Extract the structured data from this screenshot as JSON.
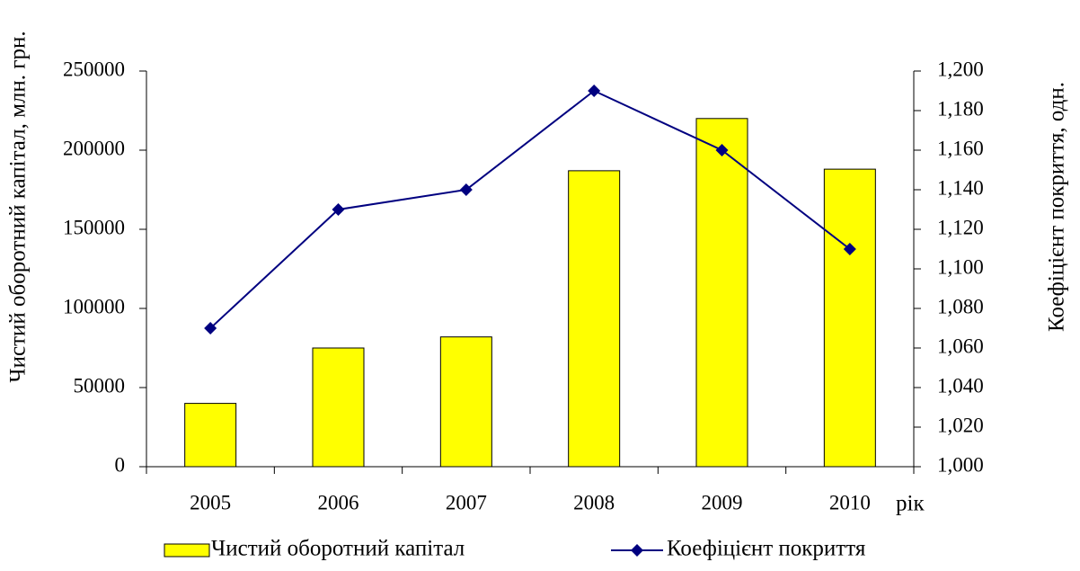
{
  "chart_data": {
    "type": "bar_line",
    "categories": [
      "2005",
      "2006",
      "2007",
      "2008",
      "2009",
      "2010"
    ],
    "x_label": "рік",
    "y_label": "Чистий оборотний капітал, млн. грн.",
    "y2_label": "Коефіцієнт покриття, одн.",
    "series": [
      {
        "name": "Чистий оборотний капітал",
        "type": "bar",
        "color": "#ffff00",
        "values": [
          40000,
          75000,
          82000,
          187000,
          220000,
          188000
        ]
      },
      {
        "name": "Коефіцієнт покриття",
        "type": "line",
        "axis": "y2",
        "color": "#000080",
        "values": [
          1.07,
          1.13,
          1.14,
          1.19,
          1.16,
          1.11
        ]
      }
    ],
    "ylim": [
      0,
      250000
    ],
    "yticks": [
      0,
      50000,
      100000,
      150000,
      200000,
      250000
    ],
    "y2lim": [
      1.0,
      1.2
    ],
    "y2ticks": [
      {
        "value": 1.0,
        "label": "1,000"
      },
      {
        "value": 1.02,
        "label": "1,020"
      },
      {
        "value": 1.04,
        "label": "1,040"
      },
      {
        "value": 1.06,
        "label": "1,060"
      },
      {
        "value": 1.08,
        "label": "1,080"
      },
      {
        "value": 1.1,
        "label": "1,100"
      },
      {
        "value": 1.12,
        "label": "1,120"
      },
      {
        "value": 1.14,
        "label": "1,140"
      },
      {
        "value": 1.16,
        "label": "1,160"
      },
      {
        "value": 1.18,
        "label": "1,180"
      },
      {
        "value": 1.2,
        "label": "1,200"
      }
    ],
    "legend": "bottom"
  }
}
